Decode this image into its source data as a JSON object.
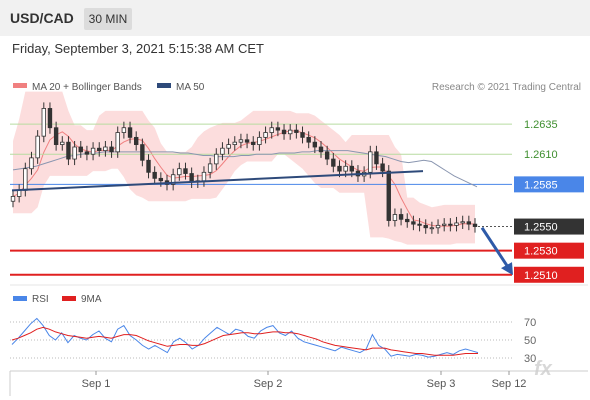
{
  "header": {
    "symbol": "USD/CAD",
    "timeframe": "30 MIN"
  },
  "datetime": "Friday, September 3, 2021 5:15:38 AM CET",
  "chart_data": {
    "type": "candlestick",
    "legend": [
      {
        "label": "MA 20 + Bollinger Bands",
        "color": "#f08080"
      },
      {
        "label": "MA 50",
        "color": "#2e4a7a"
      }
    ],
    "source": "Research © 2021 Trading Central",
    "price_levels": [
      {
        "value": 1.2635,
        "label": "1.2635",
        "kind": "resistance",
        "color": "#b7dca0",
        "label_color": "#3f8f2f"
      },
      {
        "value": 1.261,
        "label": "1.2610",
        "kind": "resistance",
        "color": "#b7dca0",
        "label_color": "#3f8f2f"
      },
      {
        "value": 1.2585,
        "label": "1.2585",
        "kind": "pivot",
        "color": "#4a86e8",
        "label_color": "#ffffff"
      },
      {
        "value": 1.255,
        "label": "1.2550",
        "kind": "last",
        "color": "#333333",
        "label_color": "#ffffff"
      },
      {
        "value": 1.253,
        "label": "1.2530",
        "kind": "support",
        "color": "#e02020",
        "label_color": "#ffffff"
      },
      {
        "value": 1.251,
        "label": "1.2510",
        "kind": "support",
        "color": "#e02020",
        "label_color": "#ffffff"
      }
    ],
    "y_range": [
      1.2504,
      1.2655
    ],
    "x_ticks": [
      "Sep 1",
      "Sep 2",
      "Sep 3",
      "Sep 12"
    ],
    "price_series": [
      1.2575,
      1.258,
      1.2598,
      1.2607,
      1.2625,
      1.2648,
      1.2632,
      1.2618,
      1.262,
      1.2606,
      1.2616,
      1.2612,
      1.261,
      1.2615,
      1.2613,
      1.2616,
      1.2612,
      1.2628,
      1.2632,
      1.2624,
      1.2618,
      1.2605,
      1.2595,
      1.259,
      1.2588,
      1.2585,
      1.2593,
      1.2598,
      1.2594,
      1.2587,
      1.2588,
      1.2595,
      1.2602,
      1.261,
      1.2615,
      1.2618,
      1.262,
      1.2622,
      1.262,
      1.2618,
      1.2624,
      1.2628,
      1.2632,
      1.263,
      1.2627,
      1.263,
      1.2628,
      1.2624,
      1.262,
      1.2616,
      1.2612,
      1.2606,
      1.26,
      1.2596,
      1.26,
      1.2596,
      1.2592,
      1.2595,
      1.2612,
      1.2602,
      1.2596,
      1.2555,
      1.256,
      1.2556,
      1.2554,
      1.2552,
      1.2551,
      1.2549,
      1.2549,
      1.2551,
      1.2552,
      1.2551,
      1.2553,
      1.2554,
      1.2552,
      1.255
    ],
    "ma50_series": [
      1.2597,
      1.2598,
      1.2599,
      1.26,
      1.2602,
      1.2604,
      1.2606,
      1.2608,
      1.2609,
      1.261,
      1.2611,
      1.2611,
      1.2612,
      1.2612,
      1.2612,
      1.2612,
      1.2612,
      1.2612,
      1.2612,
      1.2612,
      1.2612,
      1.2612,
      1.2611,
      1.2611,
      1.261,
      1.2609,
      1.2609,
      1.2608,
      1.2608,
      1.2608,
      1.2609,
      1.2609,
      1.261,
      1.261,
      1.261,
      1.2611,
      1.2611,
      1.2611,
      1.2612,
      1.2612,
      1.2613,
      1.2613,
      1.2613,
      1.2613,
      1.2613,
      1.2612,
      1.2611,
      1.261,
      1.2609,
      1.2608,
      1.2606,
      1.2604,
      1.2603,
      1.2604,
      1.2605,
      1.2604,
      1.26,
      1.2596,
      1.2592,
      1.2589,
      1.2586,
      1.2583
    ],
    "trendline": {
      "from": 1.258,
      "to": 1.2596
    },
    "rsi_panel": {
      "legend": [
        {
          "label": "RSI",
          "color": "#4a86e8"
        },
        {
          "label": "9MA",
          "color": "#e02020"
        }
      ],
      "levels": [
        "70",
        "50",
        "30"
      ],
      "y_range": [
        20,
        80
      ],
      "rsi": [
        45,
        52,
        60,
        68,
        74,
        66,
        55,
        50,
        58,
        47,
        55,
        52,
        50,
        56,
        60,
        52,
        48,
        62,
        66,
        55,
        50,
        44,
        40,
        44,
        40,
        36,
        48,
        52,
        47,
        40,
        44,
        52,
        58,
        64,
        60,
        56,
        62,
        60,
        54,
        52,
        60,
        64,
        66,
        58,
        55,
        60,
        52,
        48,
        46,
        44,
        42,
        40,
        38,
        42,
        40,
        38,
        36,
        40,
        56,
        44,
        40,
        32,
        34,
        33,
        32,
        34,
        33,
        31,
        32,
        34,
        36,
        34,
        38,
        40,
        38,
        36
      ],
      "ma9": [
        50,
        52,
        55,
        58,
        62,
        64,
        62,
        59,
        57,
        55,
        54,
        53,
        52,
        53,
        54,
        53,
        52,
        54,
        56,
        56,
        55,
        52,
        49,
        47,
        45,
        43,
        44,
        45,
        45,
        44,
        44,
        46,
        49,
        52,
        55,
        56,
        57,
        58,
        58,
        57,
        57,
        58,
        59,
        59,
        58,
        58,
        57,
        55,
        53,
        51,
        48,
        46,
        44,
        43,
        42,
        41,
        40,
        39,
        41,
        41,
        41,
        39,
        38,
        37,
        36,
        35,
        35,
        34,
        33,
        33,
        33,
        33,
        34,
        35,
        35,
        35
      ]
    }
  },
  "watermark": "fx",
  "colors": {
    "bb_fill": "#fbd7d7",
    "ma20": "#f08080",
    "ma50": "#2e4a7a",
    "candle": "#333333",
    "arrow": "#2e5aa8"
  }
}
